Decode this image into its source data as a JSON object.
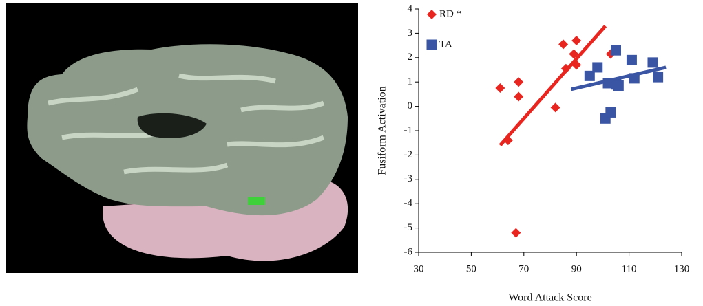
{
  "chart_data": {
    "type": "scatter",
    "x_label": "Word Attack Score",
    "y_label": "Fusiform Activation",
    "xlim": [
      30,
      130
    ],
    "xticks": [
      30,
      50,
      70,
      90,
      110,
      130
    ],
    "ylim": [
      -6,
      4
    ],
    "yticks": [
      -6,
      -5,
      -4,
      -3,
      -2,
      -1,
      0,
      1,
      2,
      3,
      4
    ],
    "legend": "upper left",
    "series": [
      {
        "name": "RD *",
        "color": "#e8251f",
        "marker": "diamond",
        "x": [
          61,
          64,
          68,
          68,
          67,
          82,
          85,
          86,
          89,
          90,
          90,
          103
        ],
        "values": [
          0.75,
          -1.4,
          1.0,
          0.4,
          -5.2,
          -0.05,
          2.55,
          1.55,
          2.15,
          2.7,
          1.7,
          2.15
        ],
        "trend": {
          "x": [
            61,
            101
          ],
          "y": [
            -1.6,
            3.3
          ]
        }
      },
      {
        "name": "TA",
        "color": "#3a55a4",
        "marker": "square",
        "x": [
          95,
          98,
          105,
          101,
          103,
          102,
          105,
          106,
          111,
          112,
          119,
          121
        ],
        "values": [
          1.25,
          1.6,
          2.3,
          -0.5,
          -0.25,
          0.95,
          0.9,
          0.85,
          1.9,
          1.15,
          1.8,
          1.2
        ],
        "trend": {
          "x": [
            88,
            124
          ],
          "y": [
            0.7,
            1.6
          ]
        }
      }
    ]
  }
}
